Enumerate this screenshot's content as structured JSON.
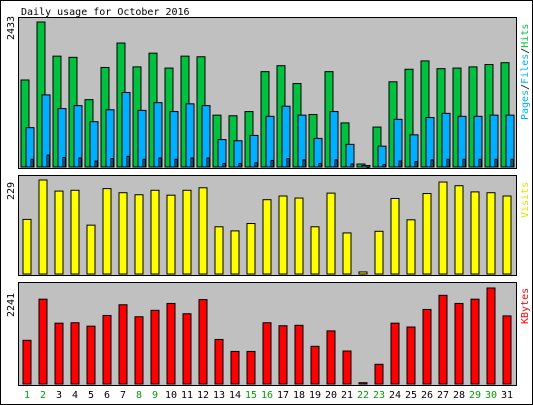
{
  "title": "Daily usage for October 2016",
  "panels": {
    "hits": {
      "label_pages": "Pages",
      "label_files": "Files",
      "label_hits": "Hits",
      "separator": "/",
      "max_label": "2433"
    },
    "visits": {
      "label": "Visits",
      "max_label": "229"
    },
    "kbytes": {
      "label": "KBytes",
      "max_label": "2241"
    }
  },
  "colors": {
    "hits": "#00c040",
    "files": "#00b0ff",
    "visits": "#ffff00",
    "kbytes": "#ff0000",
    "weekend_day": "#00a000",
    "weekday": "#000000",
    "background": "#c0c0c0"
  },
  "chart_data": [
    {
      "type": "bar",
      "title": "Daily usage for October 2016",
      "categories": [
        "1",
        "2",
        "3",
        "4",
        "5",
        "6",
        "7",
        "8",
        "9",
        "10",
        "11",
        "12",
        "13",
        "14",
        "15",
        "16",
        "17",
        "18",
        "19",
        "20",
        "21",
        "22",
        "23",
        "24",
        "25",
        "26",
        "27",
        "28",
        "29",
        "30",
        "31"
      ],
      "weekend_days": [
        "1",
        "2",
        "8",
        "9",
        "15",
        "16",
        "22",
        "23",
        "29",
        "30"
      ],
      "ylim": [
        0,
        2433
      ],
      "series": [
        {
          "name": "Hits",
          "values": [
            1460,
            2433,
            1860,
            1840,
            1130,
            1670,
            2080,
            1680,
            1910,
            1660,
            1860,
            1850,
            870,
            860,
            930,
            1600,
            1700,
            1400,
            880,
            1600,
            740,
            50,
            670,
            1430,
            1640,
            1780,
            1650,
            1660,
            1680,
            1720,
            1750
          ]
        },
        {
          "name": "Files",
          "values": [
            660,
            1210,
            980,
            1030,
            760,
            960,
            1250,
            950,
            1080,
            930,
            1060,
            1030,
            460,
            440,
            530,
            850,
            1020,
            870,
            480,
            930,
            380,
            25,
            350,
            800,
            540,
            830,
            900,
            850,
            850,
            870,
            870
          ]
        },
        {
          "name": "Pages",
          "values": [
            130,
            200,
            160,
            150,
            100,
            140,
            180,
            130,
            150,
            130,
            150,
            150,
            60,
            60,
            70,
            110,
            140,
            120,
            60,
            120,
            50,
            3,
            40,
            100,
            90,
            120,
            130,
            130,
            130,
            130,
            130
          ]
        }
      ]
    },
    {
      "type": "bar",
      "categories": [
        "1",
        "2",
        "3",
        "4",
        "5",
        "6",
        "7",
        "8",
        "9",
        "10",
        "11",
        "12",
        "13",
        "14",
        "15",
        "16",
        "17",
        "18",
        "19",
        "20",
        "21",
        "22",
        "23",
        "24",
        "25",
        "26",
        "27",
        "28",
        "29",
        "30",
        "31"
      ],
      "ylim": [
        0,
        229
      ],
      "series": [
        {
          "name": "Visits",
          "values": [
            133,
            229,
            202,
            204,
            119,
            208,
            198,
            193,
            204,
            192,
            204,
            210,
            115,
            105,
            123,
            181,
            190,
            185,
            115,
            197,
            100,
            5,
            104,
            184,
            132,
            196,
            224,
            215,
            200,
            198,
            190
          ]
        }
      ]
    },
    {
      "type": "bar",
      "categories": [
        "1",
        "2",
        "3",
        "4",
        "5",
        "6",
        "7",
        "8",
        "9",
        "10",
        "11",
        "12",
        "13",
        "14",
        "15",
        "16",
        "17",
        "18",
        "19",
        "20",
        "21",
        "22",
        "23",
        "24",
        "25",
        "26",
        "27",
        "28",
        "29",
        "30",
        "31"
      ],
      "ylim": [
        0,
        2241
      ],
      "series": [
        {
          "name": "KBytes",
          "values": [
            1020,
            1980,
            1420,
            1430,
            1350,
            1600,
            1850,
            1570,
            1720,
            1880,
            1640,
            1970,
            1040,
            760,
            760,
            1430,
            1360,
            1370,
            880,
            1240,
            770,
            30,
            460,
            1420,
            1330,
            1740,
            2070,
            1880,
            1980,
            2241,
            1590
          ]
        }
      ]
    }
  ]
}
